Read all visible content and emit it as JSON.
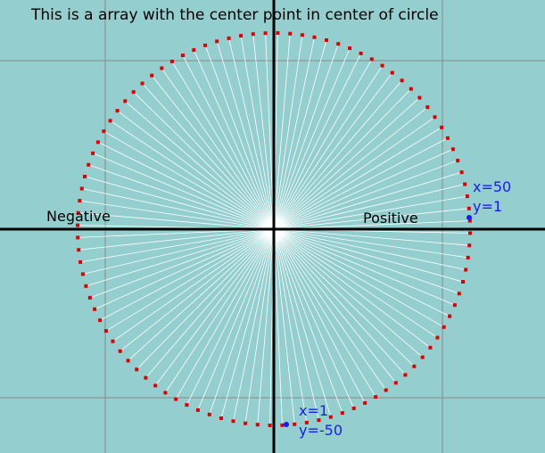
{
  "title": "This is a array with the center point in center of circle",
  "labels": {
    "negative": "Negative",
    "positive": "Positive"
  },
  "annotations": {
    "right_point": {
      "x_text": "x=50",
      "y_text": "y=1"
    },
    "bottom_point": {
      "x_text": "x=1",
      "y_text": "y=-50"
    }
  },
  "diagram": {
    "ray_count": 100,
    "colors": {
      "background": "#94cece",
      "grid": "#8a8a8a",
      "axis": "#000000",
      "ray": "#ffffff",
      "circle_marker": "#e00000",
      "highlight_marker": "#1a1aff",
      "annotation_text": "#1a1aff"
    }
  }
}
